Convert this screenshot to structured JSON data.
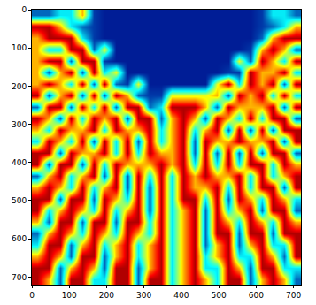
{
  "chart_data": {
    "type": "heatmap",
    "color": "Jet",
    "zlim": [
      0,
      1
    ],
    "xlim": [
      0,
      720
    ],
    "ylim": [
      720,
      0
    ],
    "xticks": [
      0,
      100,
      200,
      300,
      400,
      500,
      600,
      700
    ],
    "yticks": [
      0,
      100,
      200,
      300,
      400,
      500,
      600,
      700
    ],
    "grid": false,
    "x": [
      15,
      45,
      75,
      105,
      135,
      165,
      195,
      225,
      255,
      285,
      315,
      345,
      375,
      405,
      435,
      465,
      495,
      525,
      555,
      585,
      615,
      645,
      675,
      705
    ],
    "y": [
      15,
      45,
      75,
      105,
      135,
      165,
      195,
      225,
      255,
      285,
      315,
      345,
      375,
      405,
      435,
      465,
      495,
      525,
      555,
      585,
      615,
      645,
      675,
      705
    ],
    "z": [
      [
        0.18,
        0.18,
        0.35,
        0.35,
        0.7,
        0.12,
        0.06,
        0.06,
        0.06,
        0.06,
        0.06,
        0.06,
        0.06,
        0.06,
        0.06,
        0.06,
        0.06,
        0.06,
        0.06,
        0.06,
        0.12,
        0.35,
        0.35,
        0.18
      ],
      [
        0.95,
        0.95,
        0.7,
        0.35,
        0.18,
        0.12,
        0.06,
        0.06,
        0.06,
        0.06,
        0.06,
        0.06,
        0.06,
        0.06,
        0.06,
        0.06,
        0.06,
        0.06,
        0.06,
        0.06,
        0.12,
        0.18,
        0.35,
        0.7
      ],
      [
        0.7,
        0.95,
        0.95,
        0.95,
        0.35,
        0.12,
        0.06,
        0.06,
        0.06,
        0.06,
        0.06,
        0.06,
        0.06,
        0.06,
        0.06,
        0.06,
        0.06,
        0.06,
        0.06,
        0.06,
        0.18,
        0.7,
        0.95,
        0.95
      ],
      [
        0.7,
        0.35,
        0.35,
        0.95,
        0.95,
        0.18,
        0.6,
        0.06,
        0.06,
        0.06,
        0.06,
        0.06,
        0.06,
        0.06,
        0.06,
        0.06,
        0.06,
        0.06,
        0.06,
        0.12,
        0.7,
        0.95,
        0.7,
        0.18
      ],
      [
        0.7,
        0.95,
        0.95,
        0.18,
        0.95,
        0.95,
        0.12,
        0.06,
        0.06,
        0.06,
        0.06,
        0.06,
        0.06,
        0.06,
        0.06,
        0.06,
        0.06,
        0.06,
        0.6,
        0.18,
        0.95,
        0.7,
        0.35,
        0.95
      ],
      [
        0.7,
        0.18,
        0.7,
        0.95,
        0.18,
        0.95,
        0.35,
        0.6,
        0.06,
        0.06,
        0.06,
        0.06,
        0.06,
        0.06,
        0.06,
        0.06,
        0.06,
        0.12,
        0.12,
        0.95,
        0.7,
        0.7,
        0.95,
        0.35
      ],
      [
        0.7,
        0.95,
        0.7,
        0.35,
        0.95,
        0.18,
        0.95,
        0.18,
        0.12,
        0.6,
        0.06,
        0.06,
        0.06,
        0.06,
        0.06,
        0.06,
        0.6,
        0.95,
        0.35,
        0.95,
        0.7,
        0.95,
        0.18,
        0.95
      ],
      [
        0.95,
        0.18,
        0.7,
        0.95,
        0.18,
        0.95,
        0.18,
        0.95,
        0.7,
        0.18,
        0.12,
        0.12,
        0.6,
        0.6,
        0.6,
        0.6,
        0.7,
        0.18,
        0.95,
        0.7,
        0.95,
        0.35,
        0.95,
        0.35
      ],
      [
        0.18,
        0.95,
        0.95,
        0.18,
        0.95,
        0.35,
        0.95,
        0.18,
        0.95,
        0.95,
        0.18,
        0.35,
        0.95,
        0.95,
        0.95,
        0.7,
        0.18,
        0.95,
        0.7,
        0.7,
        0.7,
        0.95,
        0.18,
        0.95
      ],
      [
        0.95,
        0.7,
        0.18,
        0.95,
        0.35,
        0.95,
        0.7,
        0.95,
        0.18,
        0.95,
        0.95,
        0.18,
        0.7,
        0.95,
        0.7,
        0.18,
        0.95,
        0.7,
        0.35,
        0.95,
        0.35,
        0.95,
        0.95,
        0.18
      ],
      [
        0.7,
        0.35,
        0.95,
        0.7,
        0.7,
        0.95,
        0.35,
        0.95,
        0.7,
        0.7,
        0.95,
        0.35,
        0.7,
        0.95,
        0.35,
        0.7,
        0.95,
        0.18,
        0.95,
        0.18,
        0.95,
        0.18,
        0.95,
        0.95
      ],
      [
        0.35,
        0.95,
        0.7,
        0.35,
        0.95,
        0.18,
        0.95,
        0.35,
        0.95,
        0.18,
        0.95,
        0.35,
        0.7,
        0.95,
        0.18,
        0.95,
        0.7,
        0.7,
        0.95,
        0.7,
        0.7,
        0.95,
        0.18,
        0.95
      ],
      [
        0.95,
        0.95,
        0.18,
        0.95,
        0.7,
        0.7,
        0.95,
        0.35,
        0.95,
        0.35,
        0.95,
        0.7,
        0.7,
        0.95,
        0.18,
        0.95,
        0.18,
        0.95,
        0.18,
        0.95,
        0.18,
        0.95,
        0.95,
        0.18
      ],
      [
        0.95,
        0.18,
        0.95,
        0.95,
        0.18,
        0.95,
        0.35,
        0.95,
        0.7,
        0.7,
        0.7,
        0.95,
        0.7,
        0.95,
        0.35,
        0.95,
        0.35,
        0.95,
        0.35,
        0.95,
        0.95,
        0.35,
        0.95,
        0.7
      ],
      [
        0.18,
        0.7,
        0.95,
        0.35,
        0.7,
        0.95,
        0.18,
        0.95,
        0.18,
        0.95,
        0.35,
        0.95,
        0.35,
        0.95,
        0.7,
        0.95,
        0.7,
        0.7,
        0.95,
        0.35,
        0.95,
        0.35,
        0.7,
        0.95
      ],
      [
        0.7,
        0.95,
        0.7,
        0.35,
        0.95,
        0.35,
        0.7,
        0.95,
        0.18,
        0.95,
        0.18,
        0.95,
        0.35,
        0.95,
        0.7,
        0.7,
        0.95,
        0.35,
        0.95,
        0.35,
        0.95,
        0.95,
        0.18,
        0.95
      ],
      [
        0.95,
        0.95,
        0.18,
        0.95,
        0.95,
        0.18,
        0.95,
        0.7,
        0.35,
        0.95,
        0.18,
        0.95,
        0.35,
        0.95,
        0.95,
        0.35,
        0.95,
        0.18,
        0.95,
        0.7,
        0.35,
        0.95,
        0.7,
        0.35
      ],
      [
        0.95,
        0.35,
        0.7,
        0.95,
        0.7,
        0.35,
        0.95,
        0.35,
        0.7,
        0.95,
        0.18,
        0.95,
        0.35,
        0.7,
        0.95,
        0.18,
        0.95,
        0.35,
        0.7,
        0.95,
        0.18,
        0.95,
        0.95,
        0.18
      ],
      [
        0.7,
        0.18,
        0.95,
        0.95,
        0.18,
        0.95,
        0.95,
        0.18,
        0.95,
        0.95,
        0.35,
        0.95,
        0.35,
        0.7,
        0.95,
        0.18,
        0.95,
        0.7,
        0.35,
        0.95,
        0.7,
        0.35,
        0.95,
        0.7
      ],
      [
        0.18,
        0.7,
        0.95,
        0.7,
        0.35,
        0.95,
        0.7,
        0.35,
        0.95,
        0.7,
        0.35,
        0.95,
        0.35,
        0.7,
        0.95,
        0.18,
        0.95,
        0.95,
        0.18,
        0.95,
        0.95,
        0.18,
        0.95,
        0.95
      ],
      [
        0.35,
        0.95,
        0.95,
        0.18,
        0.7,
        0.95,
        0.35,
        0.7,
        0.95,
        0.35,
        0.7,
        0.95,
        0.35,
        0.7,
        0.95,
        0.18,
        0.7,
        0.95,
        0.18,
        0.7,
        0.95,
        0.35,
        0.35,
        0.95
      ],
      [
        0.7,
        0.95,
        0.7,
        0.18,
        0.95,
        0.95,
        0.18,
        0.7,
        0.95,
        0.35,
        0.7,
        0.95,
        0.35,
        0.7,
        0.95,
        0.35,
        0.7,
        0.95,
        0.35,
        0.35,
        0.95,
        0.7,
        0.18,
        0.95
      ],
      [
        0.95,
        0.95,
        0.18,
        0.7,
        0.95,
        0.7,
        0.18,
        0.95,
        0.95,
        0.18,
        0.7,
        0.95,
        0.35,
        0.7,
        0.95,
        0.35,
        0.35,
        0.95,
        0.7,
        0.18,
        0.95,
        0.95,
        0.35,
        0.35
      ],
      [
        0.95,
        0.7,
        0.18,
        0.95,
        0.95,
        0.35,
        0.35,
        0.95,
        0.95,
        0.18,
        0.95,
        0.95,
        0.35,
        0.7,
        0.95,
        0.7,
        0.35,
        0.95,
        0.95,
        0.18,
        0.7,
        0.95,
        0.7,
        0.18
      ]
    ]
  }
}
